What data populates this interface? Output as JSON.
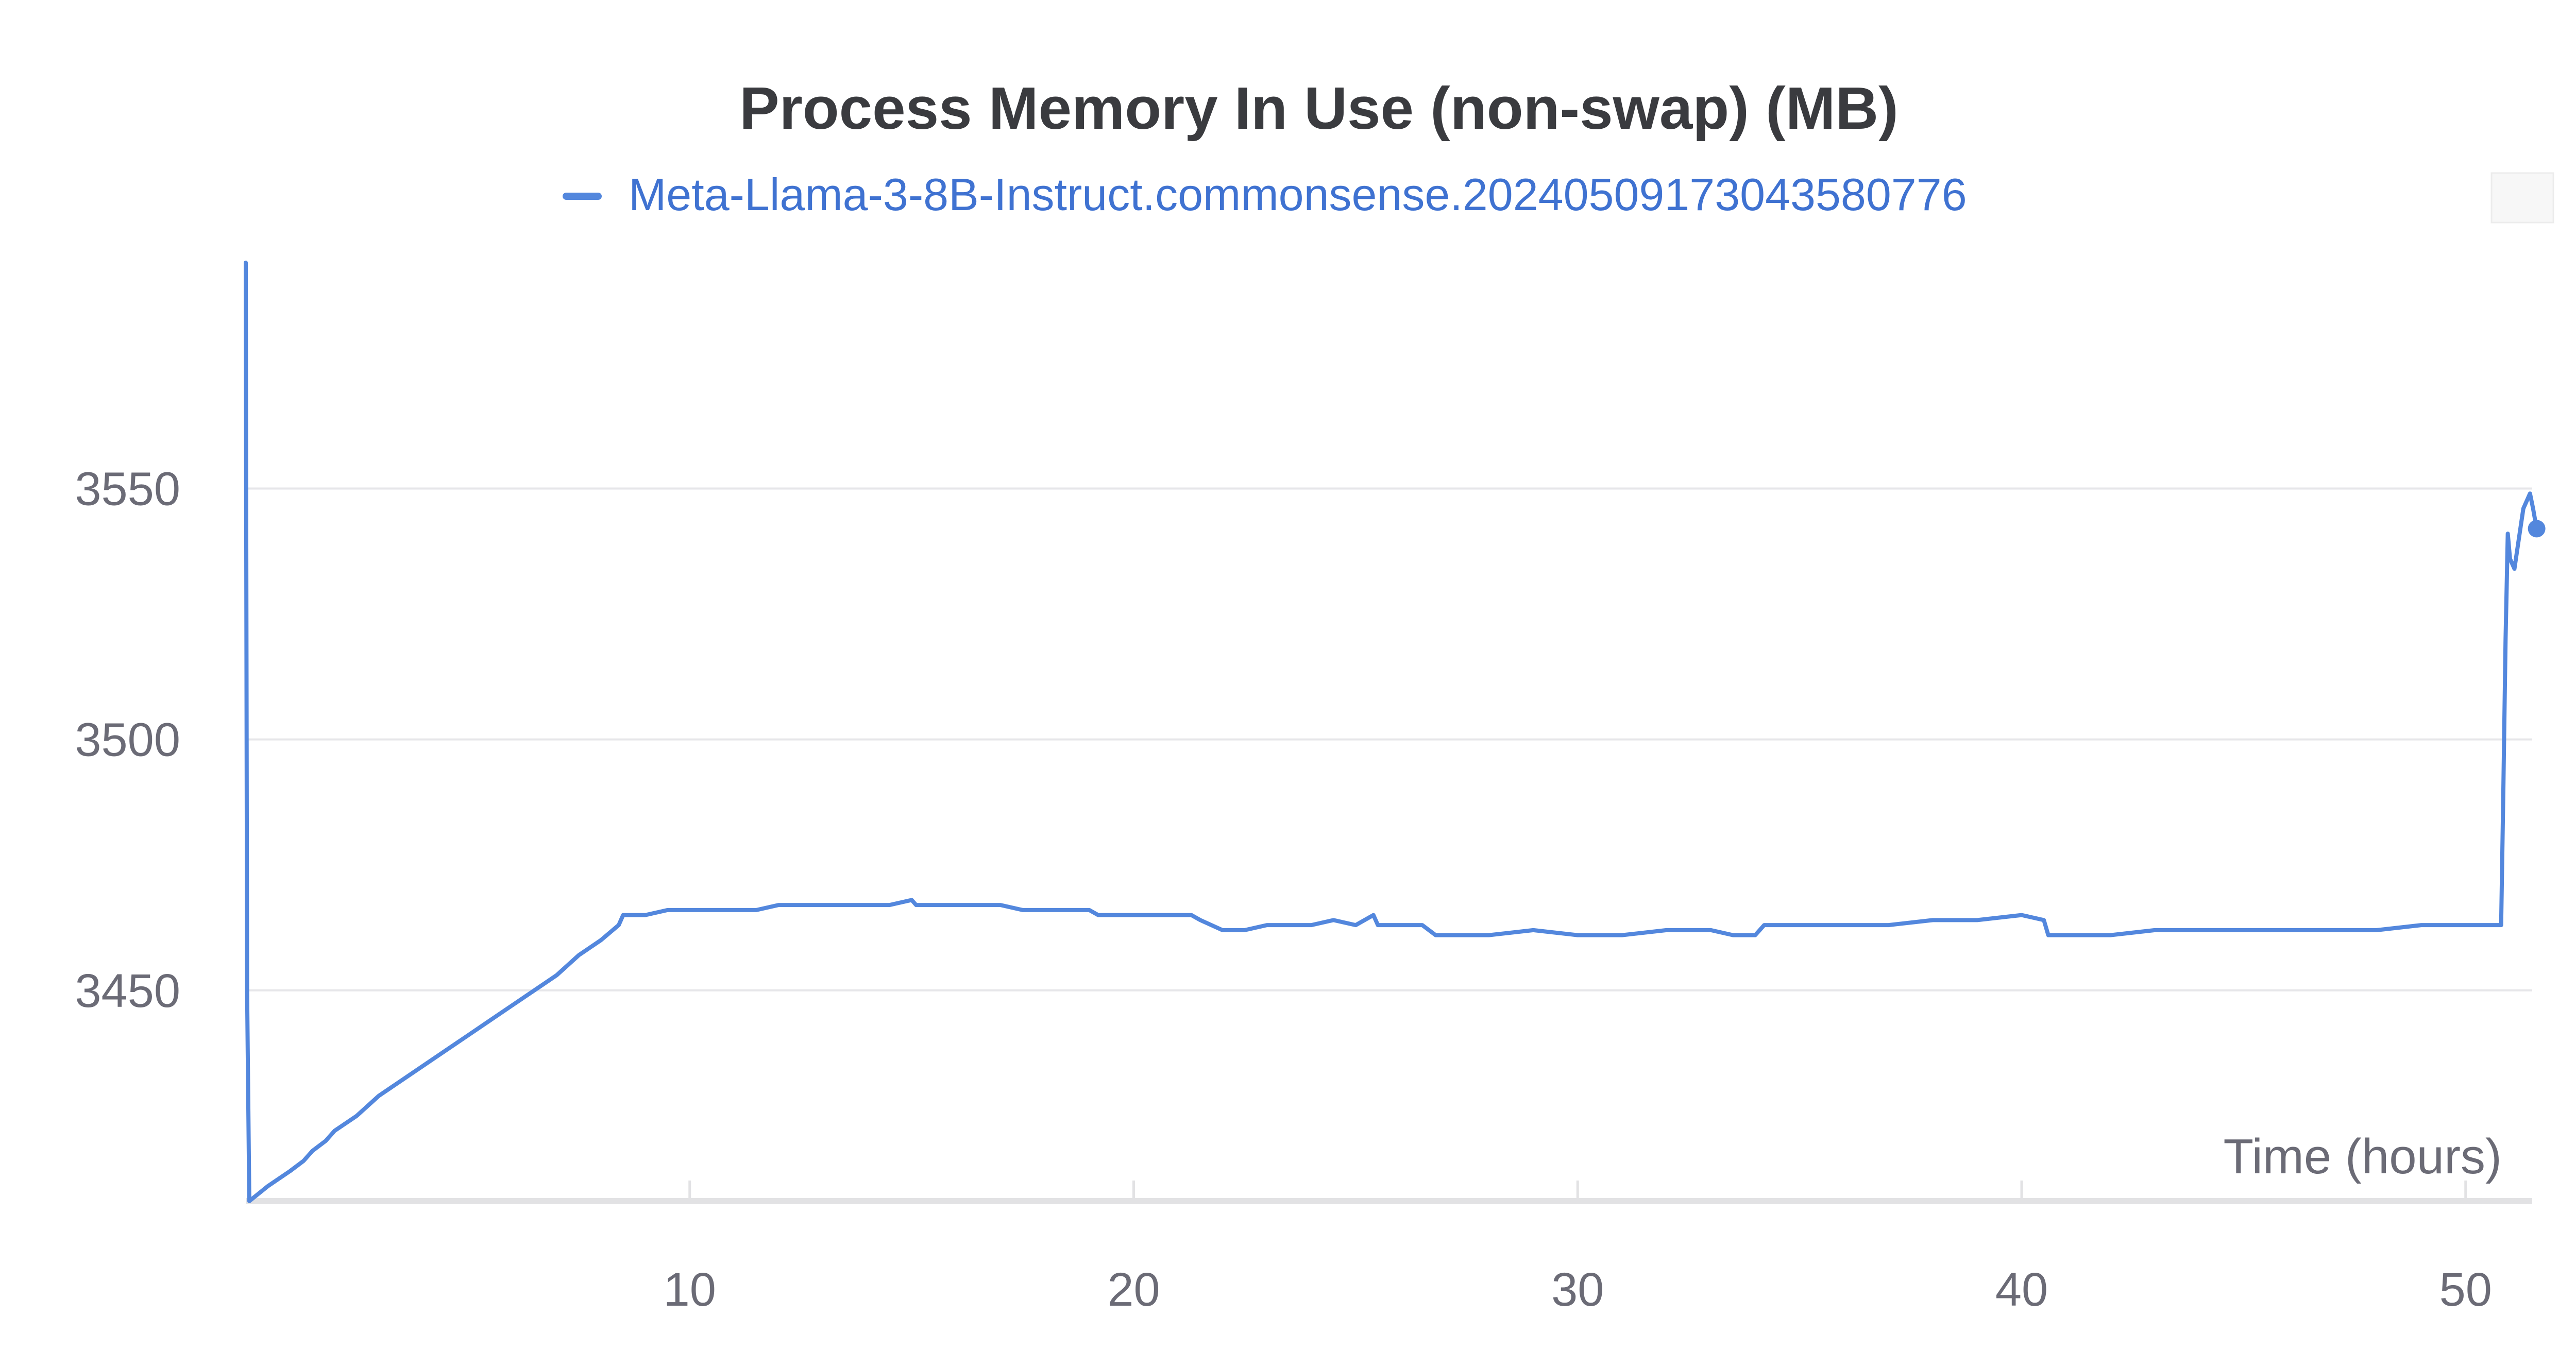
{
  "chart_data": {
    "type": "line",
    "title": "Process Memory In Use (non-swap) (MB)",
    "xlabel": "Time (hours)",
    "ylabel": "",
    "xlim": [
      0,
      51.5
    ],
    "ylim": [
      3408,
      3595
    ],
    "x_ticks": [
      10,
      20,
      30,
      40,
      50
    ],
    "y_ticks": [
      3450,
      3500,
      3550
    ],
    "grid": "horizontal",
    "legend_position": "top-center",
    "series": [
      {
        "name": "Meta-Llama-3-8B-Instruct.commonsense.20240509173043580776",
        "color": "#5387dd",
        "x": [
          0.0,
          0.03,
          0.08,
          0.5,
          1.0,
          1.3,
          1.5,
          1.8,
          2.0,
          2.5,
          3.0,
          3.5,
          4.0,
          4.5,
          5.0,
          5.5,
          6.0,
          6.5,
          7.0,
          7.5,
          8.0,
          8.4,
          8.5,
          8.7,
          9.0,
          9.5,
          10.0,
          10.5,
          11.0,
          11.5,
          12.0,
          12.5,
          13.0,
          13.5,
          14.0,
          14.5,
          15.0,
          15.1,
          16.0,
          17.0,
          17.5,
          18.0,
          19.0,
          19.2,
          20.0,
          21.0,
          21.3,
          21.5,
          22.0,
          22.5,
          23.0,
          24.0,
          24.5,
          25.0,
          25.4,
          25.5,
          25.7,
          26.0,
          26.5,
          26.8,
          27.0,
          28.0,
          29.0,
          30.0,
          31.0,
          32.0,
          33.0,
          33.5,
          34.0,
          34.2,
          35.0,
          36.0,
          37.0,
          38.0,
          39.0,
          40.0,
          40.5,
          40.6,
          41.0,
          42.0,
          43.0,
          44.0,
          45.0,
          46.0,
          47.0,
          48.0,
          49.0,
          50.0,
          50.8,
          50.85,
          50.9,
          50.95,
          51.0,
          51.1,
          51.2,
          51.3,
          51.45,
          51.52,
          51.6
        ],
        "y": [
          3595,
          3450,
          3408,
          3411,
          3414,
          3416,
          3418,
          3420,
          3422,
          3425,
          3429,
          3432,
          3435,
          3438,
          3441,
          3444,
          3447,
          3450,
          3453,
          3457,
          3460,
          3463,
          3465,
          3465,
          3465,
          3466,
          3466,
          3466,
          3466,
          3466,
          3467,
          3467,
          3467,
          3467,
          3467,
          3467,
          3468,
          3467,
          3467,
          3467,
          3466,
          3466,
          3466,
          3465,
          3465,
          3465,
          3465,
          3464,
          3462,
          3462,
          3463,
          3463,
          3464,
          3463,
          3465,
          3463,
          3463,
          3463,
          3463,
          3461,
          3461,
          3461,
          3462,
          3461,
          3461,
          3462,
          3462,
          3461,
          3461,
          3463,
          3463,
          3463,
          3463,
          3464,
          3464,
          3465,
          3464,
          3461,
          3461,
          3461,
          3462,
          3462,
          3462,
          3462,
          3462,
          3462,
          3463,
          3463,
          3463,
          3490,
          3520,
          3541,
          3536,
          3534,
          3540,
          3546,
          3549,
          3546,
          3542
        ]
      }
    ]
  }
}
